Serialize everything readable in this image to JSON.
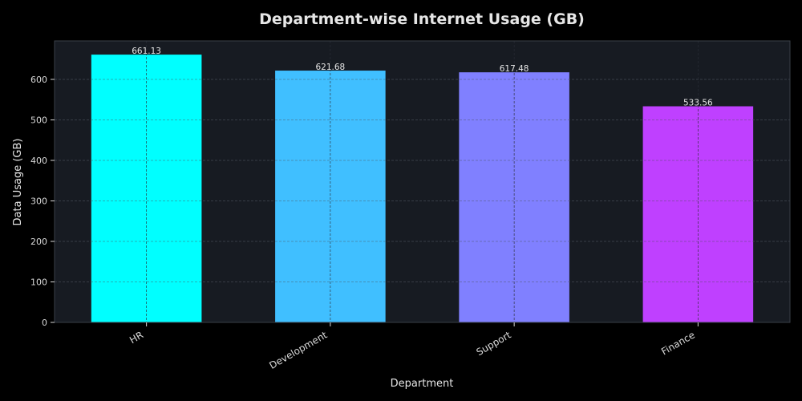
{
  "chart_data": {
    "type": "bar",
    "title": "Department-wise Internet Usage (GB)",
    "xlabel": "Department",
    "ylabel": "Data Usage (GB)",
    "categories": [
      "HR",
      "Development",
      "Support",
      "Finance"
    ],
    "values": [
      661.13,
      621.68,
      617.48,
      533.56
    ],
    "value_labels": [
      "661.13",
      "621.68",
      "617.48",
      "533.56"
    ],
    "bar_colors": [
      "#00ffff",
      "#40bfff",
      "#8080ff",
      "#bf40ff"
    ],
    "ylim": [
      0,
      695
    ],
    "yticks": [
      0,
      100,
      200,
      300,
      400,
      500,
      600
    ],
    "grid": true,
    "grid_style": "dashed",
    "legend": "none"
  },
  "colors": {
    "figure_background": "#000000",
    "axes_background": "#171b22",
    "axes_border": "#3a3f48",
    "grid": "#4a4f58",
    "text": "#e6e6e6",
    "tick_label": "#d9d9d9"
  }
}
